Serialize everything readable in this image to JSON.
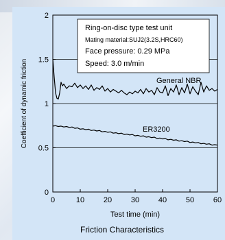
{
  "chart_data": {
    "type": "line",
    "xlabel": "Test time (min)",
    "ylabel": "Coefficient of dynamic friction",
    "caption": "Friction Characteristics",
    "xlim": [
      0,
      60
    ],
    "ylim": [
      0,
      2
    ],
    "xticks": [
      0,
      10,
      20,
      30,
      40,
      50,
      60
    ],
    "yticks": [
      0,
      0.5,
      1,
      1.5,
      2
    ],
    "ytick_labels": [
      "0",
      "0.5",
      "1",
      "1.5",
      "2"
    ],
    "grid_y": [
      0.5,
      1,
      1.5
    ],
    "info_box": {
      "line1": "Ring-on-disc type test unit",
      "line2": "Mating material:SUJ2(3.2S,HRC60)",
      "line3": "Face pressure: 0.29 MPa",
      "line4": "Speed: 3.0 m/min"
    },
    "series": [
      {
        "name": "General NBR",
        "label": "General NBR",
        "x": [
          0,
          0.5,
          1,
          1.5,
          2,
          2.5,
          3,
          3.5,
          4,
          5,
          6,
          7,
          8,
          9,
          10,
          11,
          12,
          13,
          14,
          15,
          16,
          17,
          18,
          19,
          20,
          21,
          22,
          23,
          24,
          25,
          26,
          27,
          28,
          29,
          30,
          31,
          32,
          33,
          34,
          35,
          36,
          37,
          38,
          39,
          40,
          41,
          42,
          43,
          44,
          45,
          46,
          47,
          48,
          49,
          50,
          51,
          52,
          53,
          54,
          55,
          56,
          57,
          58,
          59,
          60
        ],
        "values": [
          1.5,
          1.3,
          1.12,
          1.06,
          1.05,
          1.12,
          1.24,
          1.2,
          1.22,
          1.17,
          1.2,
          1.19,
          1.23,
          1.18,
          1.21,
          1.17,
          1.2,
          1.16,
          1.21,
          1.15,
          1.18,
          1.16,
          1.2,
          1.14,
          1.17,
          1.13,
          1.16,
          1.14,
          1.12,
          1.15,
          1.12,
          1.1,
          1.13,
          1.11,
          1.14,
          1.12,
          1.16,
          1.11,
          1.17,
          1.13,
          1.15,
          1.1,
          1.18,
          1.13,
          1.12,
          1.2,
          1.09,
          1.17,
          1.13,
          1.21,
          1.1,
          1.18,
          1.12,
          1.22,
          1.11,
          1.19,
          1.14,
          1.1,
          1.24,
          1.13,
          1.2,
          1.15,
          1.17,
          1.14,
          1.16
        ],
        "color": "#000000"
      },
      {
        "name": "ER3200",
        "label": "ER3200",
        "x": [
          0,
          1,
          2,
          3,
          4,
          5,
          6,
          7,
          8,
          9,
          10,
          11,
          12,
          13,
          14,
          15,
          16,
          17,
          18,
          19,
          20,
          21,
          22,
          23,
          24,
          25,
          26,
          27,
          28,
          29,
          30,
          31,
          32,
          33,
          34,
          35,
          36,
          37,
          38,
          39,
          40,
          41,
          42,
          43,
          44,
          45,
          46,
          47,
          48,
          49,
          50,
          51,
          52,
          53,
          54,
          55,
          56,
          57,
          58,
          59,
          60
        ],
        "values": [
          0.745,
          0.75,
          0.74,
          0.745,
          0.735,
          0.74,
          0.73,
          0.735,
          0.72,
          0.725,
          0.71,
          0.715,
          0.705,
          0.71,
          0.695,
          0.7,
          0.69,
          0.695,
          0.68,
          0.685,
          0.675,
          0.68,
          0.665,
          0.67,
          0.66,
          0.665,
          0.65,
          0.655,
          0.645,
          0.65,
          0.635,
          0.64,
          0.63,
          0.635,
          0.62,
          0.625,
          0.615,
          0.62,
          0.605,
          0.61,
          0.6,
          0.605,
          0.59,
          0.595,
          0.585,
          0.59,
          0.575,
          0.58,
          0.57,
          0.575,
          0.56,
          0.565,
          0.555,
          0.56,
          0.545,
          0.55,
          0.54,
          0.545,
          0.53,
          0.535,
          0.53
        ],
        "color": "#000000"
      }
    ]
  }
}
